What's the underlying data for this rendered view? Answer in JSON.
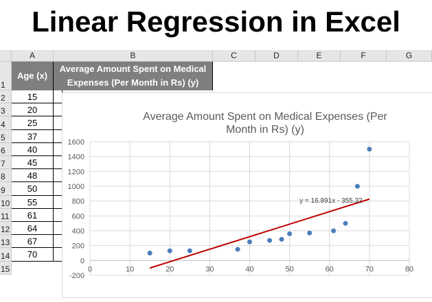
{
  "page_title": "Linear Regression in Excel",
  "columns": [
    "A",
    "B",
    "C",
    "D",
    "E",
    "F",
    "G"
  ],
  "rows": [
    "1",
    "2",
    "3",
    "4",
    "5",
    "6",
    "7",
    "8",
    "9",
    "10",
    "11",
    "12",
    "13",
    "14",
    "15"
  ],
  "headers": {
    "a": "Age (x)",
    "b": "Average Amount Spent on Medical Expenses (Per Month in Rs) (y)"
  },
  "ages": [
    "15",
    "20",
    "25",
    "37",
    "40",
    "45",
    "48",
    "50",
    "55",
    "61",
    "64",
    "67",
    "70"
  ],
  "chart_data": {
    "type": "scatter",
    "title": "Average Amount Spent on Medical Expenses (Per Month in Rs) (y)",
    "title_lines": [
      "Average Amount Spent on Medical Expenses (Per",
      "Month in Rs) (y)"
    ],
    "x": [
      15,
      20,
      25,
      37,
      40,
      45,
      48,
      50,
      55,
      61,
      64,
      67,
      70
    ],
    "y": [
      100,
      130,
      130,
      150,
      250,
      270,
      285,
      360,
      370,
      400,
      500,
      1000,
      1500
    ],
    "xlim": [
      0,
      80
    ],
    "ylim": [
      -200,
      1600
    ],
    "xticks": [
      "0",
      "10",
      "20",
      "30",
      "40",
      "50",
      "60",
      "70",
      "80"
    ],
    "yticks": [
      "-200",
      "0",
      "200",
      "400",
      "600",
      "800",
      "1000",
      "1200",
      "1400",
      "1600"
    ],
    "grid": true,
    "trendline": {
      "slope": 16.891,
      "intercept": -355.32,
      "x_range": [
        15,
        70
      ],
      "label": "y = 16.891x - 355.32",
      "color": "#c00000"
    },
    "marker_color": "#4a7ebb"
  }
}
